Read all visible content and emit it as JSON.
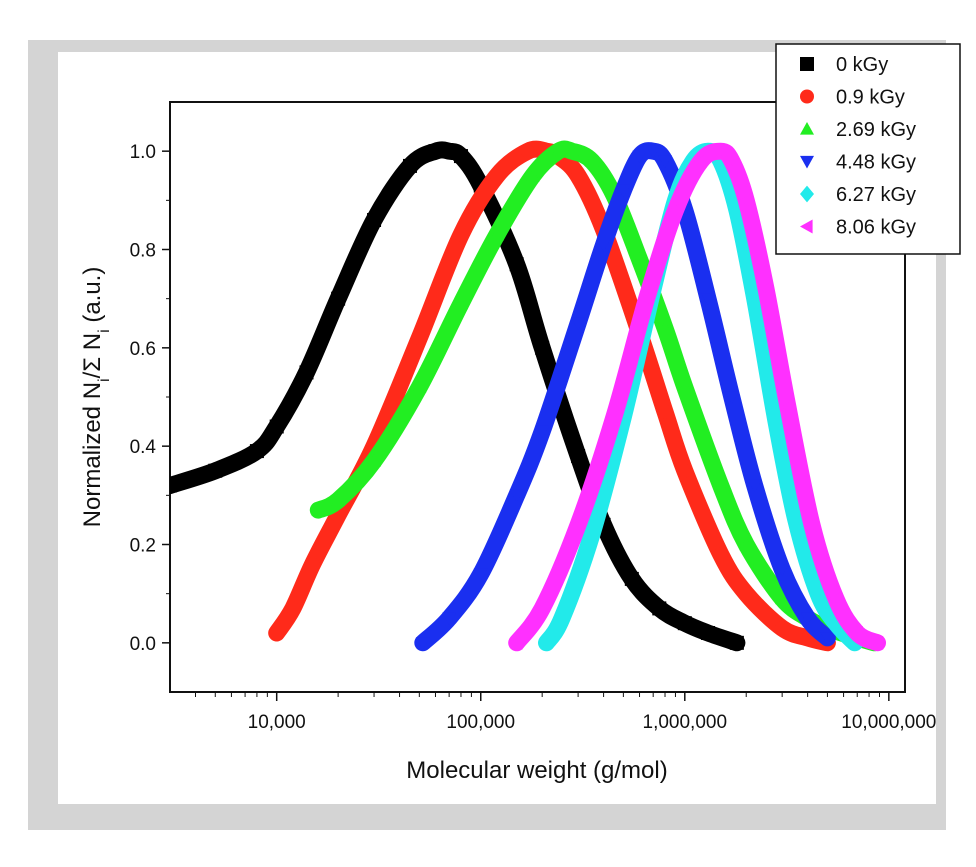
{
  "chart_data": {
    "type": "line",
    "title": "",
    "xlabel": "Molecular weight (g/mol)",
    "ylabel_main": "Normalized N",
    "ylabel_sub1": "i",
    "ylabel_mid": "/Σ N",
    "ylabel_sub2": "i",
    "ylabel_tail": " (a.u.)",
    "x_scale": "log",
    "xlim": [
      3000,
      12000000
    ],
    "ylim": [
      -0.1,
      1.1
    ],
    "x_ticks": [
      {
        "value": 10000,
        "label": "10,000"
      },
      {
        "value": 100000,
        "label": "100,000"
      },
      {
        "value": 1000000,
        "label": "1,000,000"
      },
      {
        "value": 10000000,
        "label": "10,000,000"
      }
    ],
    "y_ticks": [
      {
        "value": 0.0,
        "label": "0.0"
      },
      {
        "value": 0.2,
        "label": "0.2"
      },
      {
        "value": 0.4,
        "label": "0.4"
      },
      {
        "value": 0.6,
        "label": "0.6"
      },
      {
        "value": 0.8,
        "label": "0.8"
      },
      {
        "value": 1.0,
        "label": "1.0"
      }
    ],
    "legend_position": "top-right",
    "series": [
      {
        "name": "0 kGy",
        "color": "#000000",
        "marker": "square",
        "x": [
          3000,
          5000,
          8000,
          10000,
          14000,
          20000,
          30000,
          45000,
          60000,
          70000,
          80000,
          100000,
          150000,
          200000,
          300000,
          400000,
          550000,
          750000,
          1000000,
          1300000,
          1800000
        ],
        "y": [
          0.32,
          0.35,
          0.39,
          0.44,
          0.55,
          0.7,
          0.86,
          0.97,
          1.0,
          1.0,
          0.99,
          0.93,
          0.77,
          0.6,
          0.38,
          0.24,
          0.13,
          0.07,
          0.04,
          0.02,
          0.0
        ]
      },
      {
        "name": "0.9 kGy",
        "color": "#ff2a1a",
        "marker": "circle",
        "x": [
          10000,
          12000,
          15000,
          20000,
          30000,
          50000,
          80000,
          120000,
          170000,
          210000,
          240000,
          300000,
          400000,
          600000,
          800000,
          1000000,
          1500000,
          2000000,
          3000000,
          4000000,
          5000000
        ],
        "y": [
          0.02,
          0.07,
          0.16,
          0.26,
          0.4,
          0.62,
          0.83,
          0.95,
          1.0,
          1.0,
          0.99,
          0.95,
          0.84,
          0.63,
          0.47,
          0.35,
          0.18,
          0.1,
          0.03,
          0.01,
          0.0
        ]
      },
      {
        "name": "2.69 kGy",
        "color": "#22ee22",
        "marker": "triangle-up",
        "x": [
          16000,
          20000,
          30000,
          50000,
          80000,
          120000,
          180000,
          240000,
          280000,
          350000,
          450000,
          600000,
          800000,
          1000000,
          1500000,
          2000000,
          3000000,
          4000000,
          5000000,
          7000000,
          8500000
        ],
        "y": [
          0.27,
          0.29,
          0.37,
          0.52,
          0.69,
          0.83,
          0.95,
          1.0,
          1.0,
          0.98,
          0.91,
          0.78,
          0.64,
          0.52,
          0.32,
          0.2,
          0.09,
          0.05,
          0.03,
          0.01,
          0.0
        ]
      },
      {
        "name": "4.48 kGy",
        "color": "#1a2ff0",
        "marker": "triangle-down",
        "x": [
          52000,
          70000,
          100000,
          150000,
          200000,
          300000,
          400000,
          500000,
          600000,
          700000,
          800000,
          1000000,
          1300000,
          1700000,
          2200000,
          3000000,
          4000000,
          5000000
        ],
        "y": [
          0.0,
          0.05,
          0.14,
          0.3,
          0.43,
          0.65,
          0.81,
          0.92,
          0.99,
          1.0,
          0.98,
          0.88,
          0.7,
          0.5,
          0.32,
          0.15,
          0.05,
          0.01
        ]
      },
      {
        "name": "6.27 kGy",
        "color": "#22eaea",
        "marker": "diamond",
        "x": [
          210000,
          250000,
          350000,
          500000,
          700000,
          900000,
          1100000,
          1300000,
          1500000,
          1800000,
          2200000,
          2800000,
          3500000,
          4500000,
          5500000,
          6800000
        ],
        "y": [
          0.0,
          0.05,
          0.22,
          0.46,
          0.72,
          0.9,
          0.98,
          1.0,
          0.98,
          0.88,
          0.7,
          0.45,
          0.25,
          0.1,
          0.04,
          0.0
        ]
      },
      {
        "name": "8.06 kGy",
        "color": "#ff30ff",
        "marker": "triangle-left",
        "x": [
          150000,
          200000,
          300000,
          450000,
          650000,
          900000,
          1200000,
          1500000,
          1700000,
          2000000,
          2500000,
          3200000,
          4200000,
          5500000,
          7000000,
          8800000
        ],
        "y": [
          0.0,
          0.07,
          0.24,
          0.46,
          0.7,
          0.88,
          0.98,
          1.0,
          0.98,
          0.9,
          0.72,
          0.48,
          0.24,
          0.09,
          0.02,
          0.0
        ]
      }
    ]
  }
}
